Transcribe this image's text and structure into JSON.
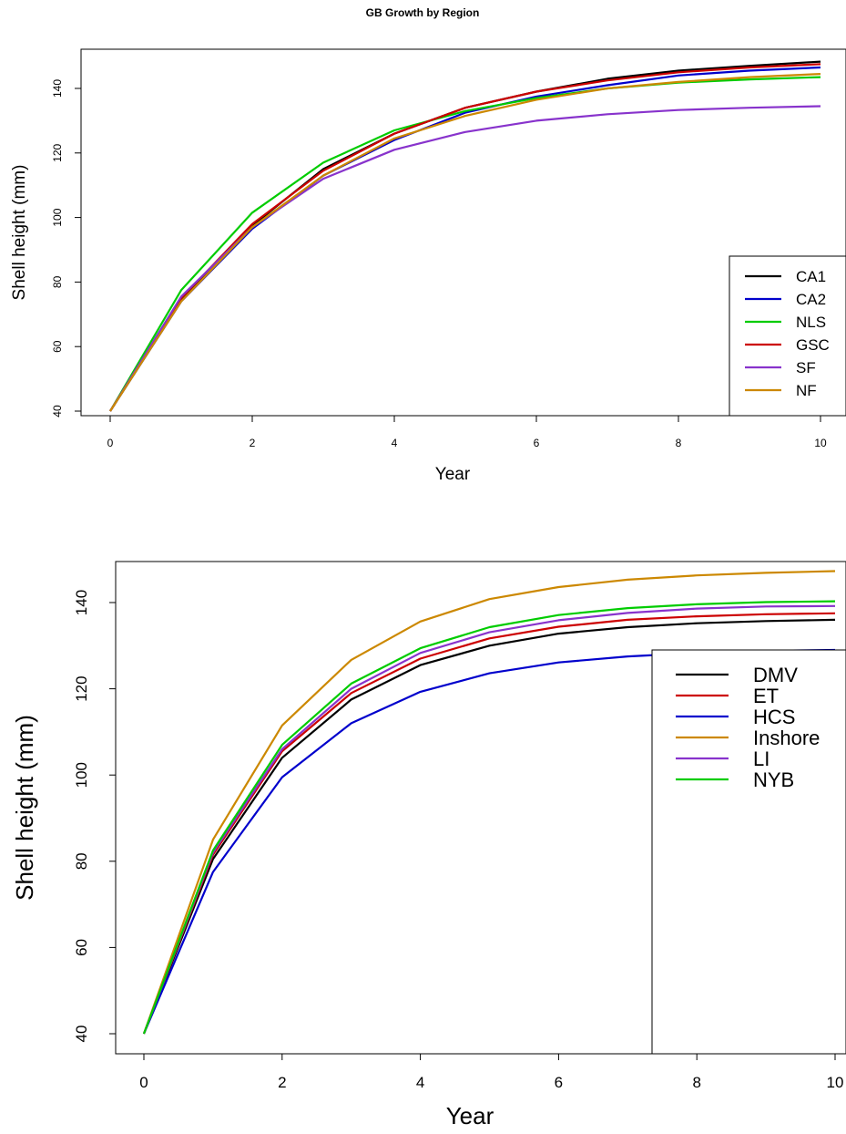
{
  "chart_data": [
    {
      "type": "line",
      "title": "GB Growth by Region",
      "xlabel": "Year",
      "ylabel": "Shell height (mm)",
      "xlim": [
        0,
        10
      ],
      "ylim": [
        40,
        150
      ],
      "xticks": [
        0,
        2,
        4,
        6,
        8,
        10
      ],
      "yticks": [
        40,
        60,
        80,
        100,
        120,
        140
      ],
      "grid": false,
      "legend_position": "right",
      "x": [
        0,
        1,
        2,
        3,
        4,
        5,
        6,
        7,
        8,
        9,
        10
      ],
      "series": [
        {
          "name": "CA1",
          "color": "#000000",
          "values": [
            40,
            74.5,
            97.5,
            115,
            126,
            134,
            139,
            143,
            145.5,
            147,
            148.3
          ]
        },
        {
          "name": "CA2",
          "color": "#0000CC",
          "values": [
            40,
            74,
            96.5,
            113,
            124,
            132.5,
            137.5,
            141,
            144,
            145.5,
            146.5
          ]
        },
        {
          "name": "NLS",
          "color": "#00CC00",
          "values": [
            40,
            77.5,
            101.5,
            117,
            127,
            133,
            137,
            140,
            141.8,
            142.8,
            143.5
          ]
        },
        {
          "name": "GSC",
          "color": "#CC0000",
          "values": [
            40,
            75,
            98,
            114.5,
            126,
            134,
            139,
            142.5,
            145,
            146.5,
            147.5
          ]
        },
        {
          "name": "SF",
          "color": "#8833CC",
          "values": [
            40,
            75.5,
            97,
            112,
            121,
            126.5,
            130,
            132,
            133.3,
            134,
            134.5
          ]
        },
        {
          "name": "NF",
          "color": "#CC8800",
          "values": [
            40,
            74,
            97,
            113,
            124.5,
            131.5,
            136.5,
            140,
            142,
            143.5,
            144.5
          ]
        }
      ]
    },
    {
      "type": "line",
      "title": "",
      "xlabel": "Year",
      "ylabel": "Shell height (mm)",
      "xlim": [
        0,
        10
      ],
      "ylim": [
        40,
        148
      ],
      "xticks": [
        0,
        2,
        4,
        6,
        8,
        10
      ],
      "yticks": [
        40,
        60,
        80,
        100,
        120,
        140
      ],
      "grid": false,
      "legend_position": "bottom-right",
      "x": [
        0,
        1,
        2,
        3,
        4,
        5,
        6,
        7,
        8,
        9,
        10
      ],
      "series": [
        {
          "name": "DMV",
          "color": "#000000",
          "values": [
            40,
            80.5,
            104,
            117.5,
            125.5,
            130,
            132.8,
            134.3,
            135.2,
            135.7,
            136
          ]
        },
        {
          "name": "ET",
          "color": "#CC0000",
          "values": [
            40,
            81.5,
            105.5,
            119,
            127,
            131.7,
            134.4,
            136,
            136.8,
            137.3,
            137.5
          ]
        },
        {
          "name": "HCS",
          "color": "#0000CC",
          "values": [
            40,
            77.5,
            99.5,
            112,
            119.3,
            123.6,
            126.1,
            127.5,
            128.3,
            128.8,
            129
          ]
        },
        {
          "name": "Inshore",
          "color": "#CC8800",
          "values": [
            40,
            85,
            111.5,
            126.7,
            135.6,
            140.8,
            143.6,
            145.3,
            146.3,
            146.9,
            147.3
          ]
        },
        {
          "name": "LI",
          "color": "#8833CC",
          "values": [
            40,
            82,
            106,
            120,
            128.3,
            133.1,
            135.9,
            137.6,
            138.6,
            139.1,
            139.2
          ]
        },
        {
          "name": "NYB",
          "color": "#00CC00",
          "values": [
            40,
            82.5,
            107,
            121.2,
            129.4,
            134.3,
            137.1,
            138.7,
            139.6,
            140.1,
            140.3
          ]
        }
      ]
    }
  ]
}
